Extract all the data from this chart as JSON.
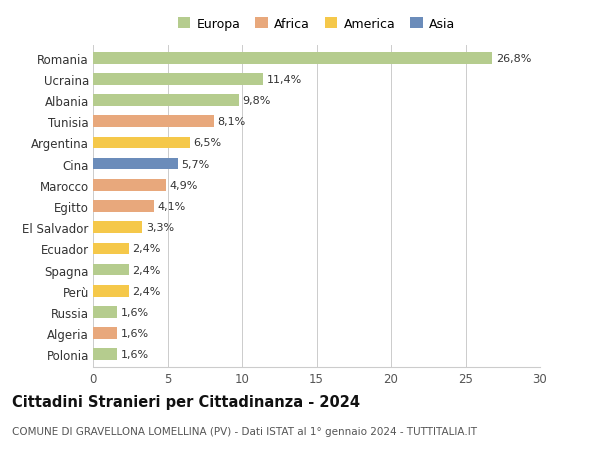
{
  "categories": [
    "Romania",
    "Ucraina",
    "Albania",
    "Tunisia",
    "Argentina",
    "Cina",
    "Marocco",
    "Egitto",
    "El Salvador",
    "Ecuador",
    "Spagna",
    "Perù",
    "Russia",
    "Algeria",
    "Polonia"
  ],
  "values": [
    26.8,
    11.4,
    9.8,
    8.1,
    6.5,
    5.7,
    4.9,
    4.1,
    3.3,
    2.4,
    2.4,
    2.4,
    1.6,
    1.6,
    1.6
  ],
  "labels": [
    "26,8%",
    "11,4%",
    "9,8%",
    "8,1%",
    "6,5%",
    "5,7%",
    "4,9%",
    "4,1%",
    "3,3%",
    "2,4%",
    "2,4%",
    "2,4%",
    "1,6%",
    "1,6%",
    "1,6%"
  ],
  "colors": [
    "#b5cc8e",
    "#b5cc8e",
    "#b5cc8e",
    "#e8a87c",
    "#f5c84a",
    "#6b8cba",
    "#e8a87c",
    "#e8a87c",
    "#f5c84a",
    "#f5c84a",
    "#b5cc8e",
    "#f5c84a",
    "#b5cc8e",
    "#e8a87c",
    "#b5cc8e"
  ],
  "legend_labels": [
    "Europa",
    "Africa",
    "America",
    "Asia"
  ],
  "legend_colors": [
    "#b5cc8e",
    "#e8a87c",
    "#f5c84a",
    "#6b8cba"
  ],
  "xlim": [
    0,
    30
  ],
  "xticks": [
    0,
    5,
    10,
    15,
    20,
    25,
    30
  ],
  "title": "Cittadini Stranieri per Cittadinanza - 2024",
  "subtitle": "COMUNE DI GRAVELLONA LOMELLINA (PV) - Dati ISTAT al 1° gennaio 2024 - TUTTITALIA.IT",
  "background_color": "#ffffff",
  "grid_color": "#cccccc",
  "bar_height": 0.55,
  "label_fontsize": 8.0,
  "ytick_fontsize": 8.5,
  "xtick_fontsize": 8.5,
  "title_fontsize": 10.5,
  "subtitle_fontsize": 7.5
}
